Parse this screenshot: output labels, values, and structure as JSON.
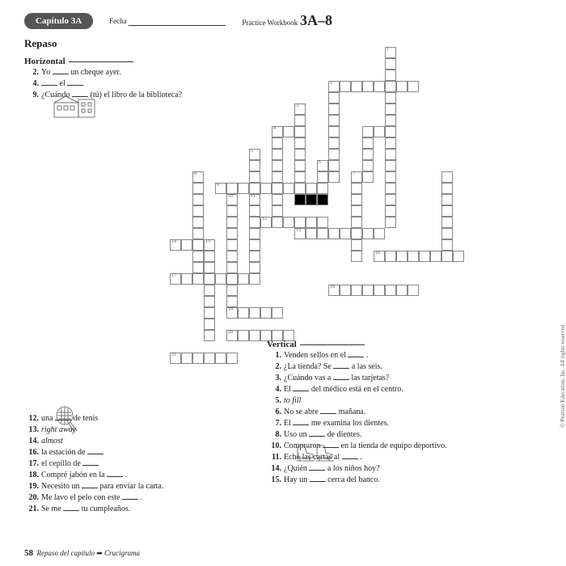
{
  "header": {
    "chapter": "Capítulo 3A",
    "fecha_label": "Fecha",
    "workbook_label": "Practice Workbook",
    "workbook_code": "3A–8"
  },
  "title": "Repaso",
  "sections": {
    "horizontal_label": "Horizontal",
    "vertical_label": "Vertical"
  },
  "horizontal_top": [
    {
      "num": "2.",
      "text": "Yo ___ un cheque ayer."
    },
    {
      "num": "4.",
      "text": "___ el ___"
    },
    {
      "num": "9.",
      "text": "¿Cuándo ___ (tú) el libro de la biblioteca?"
    }
  ],
  "horizontal_bottom": [
    {
      "num": "12.",
      "text": "una ___ de tenis"
    },
    {
      "num": "13.",
      "text": "right away",
      "italic": true
    },
    {
      "num": "14.",
      "text": "almost",
      "italic": true
    },
    {
      "num": "16.",
      "text": "la estación de ___"
    },
    {
      "num": "17.",
      "text": "el cepillo de ___"
    },
    {
      "num": "18.",
      "text": "Compré jabón en la ___ ."
    },
    {
      "num": "19.",
      "text": "Necesito un ___ para enviar la carta."
    },
    {
      "num": "20.",
      "text": "Me lavo el pelo con este ___ ."
    },
    {
      "num": "21.",
      "text": "Se me ___ tu cumpleaños."
    }
  ],
  "vertical_clues": [
    {
      "num": "1.",
      "text": "Venden sellos en el ___ ."
    },
    {
      "num": "2.",
      "text": "¿La tienda? Se ___ a las seis."
    },
    {
      "num": "3.",
      "text": "¿Cuándo vas a ___ las tarjetas?"
    },
    {
      "num": "4.",
      "text": "El ___ del médico está en el centro."
    },
    {
      "num": "5.",
      "text": "to fill",
      "italic": true
    },
    {
      "num": "6.",
      "text": "No se abre ___ mañana."
    },
    {
      "num": "7.",
      "text": "El ___ me examina los dientes."
    },
    {
      "num": "8.",
      "text": "Uso un ___ de dientes."
    },
    {
      "num": "10.",
      "text": "Compraron ___ en la tienda de equipo deportivo."
    },
    {
      "num": "11.",
      "text": "Eché las cartas al ___ ."
    },
    {
      "num": "14.",
      "text": "¿Quién ___ a los niños hoy?"
    },
    {
      "num": "15.",
      "text": "Hay un ___ cerca del banco."
    }
  ],
  "footer": {
    "page": "58",
    "title": "Repaso del capítulo",
    "subtitle": "Crucigrama"
  },
  "copyright": "© Pearson Education, Inc. All rights reserved.",
  "grid": {
    "cell_size": 14,
    "cells": [
      {
        "r": 0,
        "c": 19,
        "n": "1"
      },
      {
        "r": 1,
        "c": 19
      },
      {
        "r": 2,
        "c": 19
      },
      {
        "r": 3,
        "c": 14,
        "n": "2"
      },
      {
        "r": 3,
        "c": 15
      },
      {
        "r": 3,
        "c": 16
      },
      {
        "r": 3,
        "c": 17
      },
      {
        "r": 3,
        "c": 18
      },
      {
        "r": 3,
        "c": 19
      },
      {
        "r": 3,
        "c": 20
      },
      {
        "r": 3,
        "c": 21
      },
      {
        "r": 4,
        "c": 14
      },
      {
        "r": 4,
        "c": 19
      },
      {
        "r": 5,
        "c": 11,
        "n": "3"
      },
      {
        "r": 5,
        "c": 14
      },
      {
        "r": 5,
        "c": 19
      },
      {
        "r": 6,
        "c": 11
      },
      {
        "r": 6,
        "c": 14
      },
      {
        "r": 6,
        "c": 19
      },
      {
        "r": 7,
        "c": 9,
        "n": "4"
      },
      {
        "r": 7,
        "c": 10
      },
      {
        "r": 7,
        "c": 11
      },
      {
        "r": 7,
        "c": 14
      },
      {
        "r": 7,
        "c": 17
      },
      {
        "r": 7,
        "c": 18
      },
      {
        "r": 7,
        "c": 19
      },
      {
        "r": 8,
        "c": 9
      },
      {
        "r": 8,
        "c": 11
      },
      {
        "r": 8,
        "c": 14
      },
      {
        "r": 8,
        "c": 17
      },
      {
        "r": 8,
        "c": 19
      },
      {
        "r": 9,
        "c": 7,
        "n": "5"
      },
      {
        "r": 9,
        "c": 9
      },
      {
        "r": 9,
        "c": 11
      },
      {
        "r": 9,
        "c": 14
      },
      {
        "r": 9,
        "c": 17
      },
      {
        "r": 9,
        "c": 19
      },
      {
        "r": 10,
        "c": 7
      },
      {
        "r": 10,
        "c": 9
      },
      {
        "r": 10,
        "c": 11
      },
      {
        "r": 10,
        "c": 13,
        "n": "6"
      },
      {
        "r": 10,
        "c": 14
      },
      {
        "r": 10,
        "c": 17
      },
      {
        "r": 10,
        "c": 19
      },
      {
        "r": 11,
        "c": 2,
        "n": "8"
      },
      {
        "r": 11,
        "c": 7
      },
      {
        "r": 11,
        "c": 9
      },
      {
        "r": 11,
        "c": 11
      },
      {
        "r": 11,
        "c": 13
      },
      {
        "r": 11,
        "c": 14
      },
      {
        "r": 11,
        "c": 16,
        "n": "7"
      },
      {
        "r": 11,
        "c": 17
      },
      {
        "r": 11,
        "c": 19
      },
      {
        "r": 11,
        "c": 24
      },
      {
        "r": 12,
        "c": 2
      },
      {
        "r": 12,
        "c": 4,
        "n": "9"
      },
      {
        "r": 12,
        "c": 5
      },
      {
        "r": 12,
        "c": 6
      },
      {
        "r": 12,
        "c": 7
      },
      {
        "r": 12,
        "c": 8
      },
      {
        "r": 12,
        "c": 9
      },
      {
        "r": 12,
        "c": 10
      },
      {
        "r": 12,
        "c": 11
      },
      {
        "r": 12,
        "c": 12
      },
      {
        "r": 12,
        "c": 13
      },
      {
        "r": 12,
        "c": 16
      },
      {
        "r": 12,
        "c": 19
      },
      {
        "r": 12,
        "c": 24
      },
      {
        "r": 13,
        "c": 2
      },
      {
        "r": 13,
        "c": 5,
        "n": "10"
      },
      {
        "r": 13,
        "c": 7,
        "n": "11"
      },
      {
        "r": 13,
        "c": 9
      },
      {
        "r": 13,
        "c": 11,
        "black": true
      },
      {
        "r": 13,
        "c": 12,
        "black": true
      },
      {
        "r": 13,
        "c": 13,
        "black": true
      },
      {
        "r": 13,
        "c": 16
      },
      {
        "r": 13,
        "c": 19
      },
      {
        "r": 13,
        "c": 24
      },
      {
        "r": 14,
        "c": 2
      },
      {
        "r": 14,
        "c": 5
      },
      {
        "r": 14,
        "c": 7
      },
      {
        "r": 14,
        "c": 9
      },
      {
        "r": 14,
        "c": 16
      },
      {
        "r": 14,
        "c": 19
      },
      {
        "r": 14,
        "c": 24
      },
      {
        "r": 15,
        "c": 2
      },
      {
        "r": 15,
        "c": 5
      },
      {
        "r": 15,
        "c": 7
      },
      {
        "r": 15,
        "c": 8,
        "n": "12"
      },
      {
        "r": 15,
        "c": 9
      },
      {
        "r": 15,
        "c": 10
      },
      {
        "r": 15,
        "c": 11
      },
      {
        "r": 15,
        "c": 12
      },
      {
        "r": 15,
        "c": 13
      },
      {
        "r": 15,
        "c": 16
      },
      {
        "r": 15,
        "c": 19
      },
      {
        "r": 15,
        "c": 24
      },
      {
        "r": 16,
        "c": 2
      },
      {
        "r": 16,
        "c": 5
      },
      {
        "r": 16,
        "c": 7
      },
      {
        "r": 16,
        "c": 11,
        "n": "13"
      },
      {
        "r": 16,
        "c": 12
      },
      {
        "r": 16,
        "c": 13
      },
      {
        "r": 16,
        "c": 14
      },
      {
        "r": 16,
        "c": 15
      },
      {
        "r": 16,
        "c": 16
      },
      {
        "r": 16,
        "c": 17
      },
      {
        "r": 16,
        "c": 18
      },
      {
        "r": 16,
        "c": 24
      },
      {
        "r": 17,
        "c": 0,
        "n": "14"
      },
      {
        "r": 17,
        "c": 1
      },
      {
        "r": 17,
        "c": 2
      },
      {
        "r": 17,
        "c": 3,
        "n": "15"
      },
      {
        "r": 17,
        "c": 5
      },
      {
        "r": 17,
        "c": 7
      },
      {
        "r": 17,
        "c": 16
      },
      {
        "r": 17,
        "c": 24
      },
      {
        "r": 18,
        "c": 2
      },
      {
        "r": 18,
        "c": 3
      },
      {
        "r": 18,
        "c": 5
      },
      {
        "r": 18,
        "c": 7
      },
      {
        "r": 18,
        "c": 16
      },
      {
        "r": 18,
        "c": 18,
        "n": "16"
      },
      {
        "r": 18,
        "c": 19
      },
      {
        "r": 18,
        "c": 20
      },
      {
        "r": 18,
        "c": 21
      },
      {
        "r": 18,
        "c": 22
      },
      {
        "r": 18,
        "c": 23
      },
      {
        "r": 18,
        "c": 24
      },
      {
        "r": 18,
        "c": 25
      },
      {
        "r": 19,
        "c": 2
      },
      {
        "r": 19,
        "c": 3
      },
      {
        "r": 19,
        "c": 5
      },
      {
        "r": 19,
        "c": 7
      },
      {
        "r": 20,
        "c": 0,
        "n": "17"
      },
      {
        "r": 20,
        "c": 1
      },
      {
        "r": 20,
        "c": 2
      },
      {
        "r": 20,
        "c": 3
      },
      {
        "r": 20,
        "c": 4
      },
      {
        "r": 20,
        "c": 5
      },
      {
        "r": 20,
        "c": 6
      },
      {
        "r": 20,
        "c": 7
      },
      {
        "r": 21,
        "c": 3
      },
      {
        "r": 21,
        "c": 5
      },
      {
        "r": 21,
        "c": 14,
        "n": "18"
      },
      {
        "r": 21,
        "c": 15
      },
      {
        "r": 21,
        "c": 16
      },
      {
        "r": 21,
        "c": 17
      },
      {
        "r": 21,
        "c": 18
      },
      {
        "r": 21,
        "c": 19
      },
      {
        "r": 21,
        "c": 20
      },
      {
        "r": 21,
        "c": 21
      },
      {
        "r": 22,
        "c": 3
      },
      {
        "r": 22,
        "c": 5
      },
      {
        "r": 23,
        "c": 3
      },
      {
        "r": 23,
        "c": 5,
        "n": "19"
      },
      {
        "r": 23,
        "c": 6
      },
      {
        "r": 23,
        "c": 7
      },
      {
        "r": 23,
        "c": 8
      },
      {
        "r": 23,
        "c": 9
      },
      {
        "r": 24,
        "c": 3
      },
      {
        "r": 25,
        "c": 3
      },
      {
        "r": 25,
        "c": 5,
        "n": "20"
      },
      {
        "r": 25,
        "c": 6
      },
      {
        "r": 25,
        "c": 7
      },
      {
        "r": 25,
        "c": 8
      },
      {
        "r": 25,
        "c": 9
      },
      {
        "r": 25,
        "c": 10
      },
      {
        "r": 27,
        "c": 0,
        "n": "21"
      },
      {
        "r": 27,
        "c": 1
      },
      {
        "r": 27,
        "c": 2
      },
      {
        "r": 27,
        "c": 3
      },
      {
        "r": 27,
        "c": 4
      },
      {
        "r": 27,
        "c": 5
      }
    ]
  }
}
